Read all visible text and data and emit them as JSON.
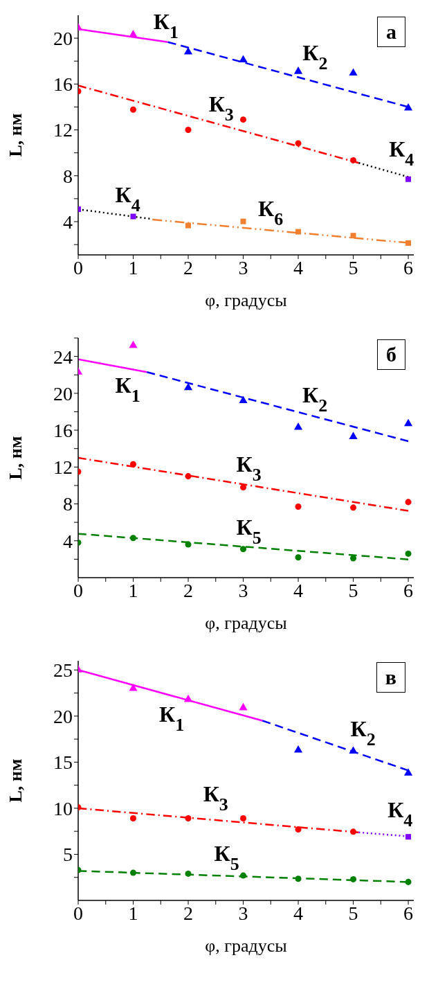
{
  "chart_data": [
    {
      "type": "scatter",
      "xlabel": "φ, градусы",
      "ylabel": "L, нм",
      "xlim": [
        0,
        6.1
      ],
      "xticks": [
        0,
        {
          "value": 0.5,
          "label": null
        },
        1,
        {
          "value": 1.5,
          "label": null
        },
        2,
        {
          "value": 2.5,
          "label": null
        },
        3,
        {
          "value": 3.5,
          "label": null
        },
        4,
        {
          "value": 4.5,
          "label": null
        },
        5,
        {
          "value": 5.5,
          "label": null
        },
        6
      ],
      "ylim": [
        1.1,
        22
      ],
      "yticks": [
        {
          "value": 2,
          "label": null
        },
        4,
        {
          "value": 6,
          "label": null
        },
        8,
        {
          "value": 10,
          "label": null
        },
        12,
        {
          "value": 14,
          "label": null
        },
        16,
        {
          "value": 18,
          "label": null
        },
        20
      ],
      "annotations": [
        "а"
      ],
      "series": [
        {
          "type": "scatter",
          "color": "#ff00ff",
          "marker": "triangle",
          "x": [
            0,
            1
          ],
          "values": [
            20.9,
            20.3
          ]
        },
        {
          "type": "scatter",
          "color": "#0000ff",
          "marker": "triangle",
          "x": [
            2,
            3,
            4,
            5,
            6
          ],
          "values": [
            18.8,
            18.1,
            17.1,
            16.95,
            13.9
          ]
        },
        {
          "type": "scatter",
          "color": "#ff0000",
          "marker": "circle",
          "x": [
            0,
            1,
            2,
            3,
            4,
            5
          ],
          "values": [
            15.37,
            13.77,
            12.0,
            12.9,
            10.83,
            9.35
          ]
        },
        {
          "type": "scatter",
          "color": "#8000ff",
          "marker": "square",
          "x": [
            0,
            1,
            6
          ],
          "values": [
            5.08,
            4.45,
            7.7
          ]
        },
        {
          "type": "scatter",
          "color": "#f08030",
          "marker": "square",
          "x": [
            2,
            3,
            4,
            5,
            6
          ],
          "values": [
            3.66,
            4.02,
            3.12,
            2.78,
            2.13
          ]
        },
        {
          "type": "line",
          "name": "К$_{1}$",
          "color": "#ff00ff",
          "line_style": "solid",
          "x": [
            0,
            1.63
          ],
          "values": [
            20.8,
            19.66
          ]
        },
        {
          "type": "line",
          "name": "К$_{2}$",
          "color": "#0000ff",
          "line_style": "dashed",
          "x": [
            1.63,
            6
          ],
          "values": [
            19.66,
            14.0
          ]
        },
        {
          "type": "line",
          "name": "К$_{3}$",
          "color": "#ff0000",
          "line_style": "dashdot",
          "x": [
            0,
            5.1
          ],
          "values": [
            15.87,
            9.12
          ]
        },
        {
          "type": "line",
          "name": "К$_{4}$",
          "color": "#000000",
          "line_style": "dotted",
          "x": [
            5.1,
            6
          ],
          "values": [
            9.12,
            7.9
          ]
        },
        {
          "type": "line",
          "name": "К$_{4}$",
          "color": "#000000",
          "line_style": "dotted",
          "x": [
            0,
            1.3
          ],
          "values": [
            5.08,
            4.25
          ]
        },
        {
          "type": "line",
          "name": "К$_{6}$",
          "color": "#f08030",
          "line_style": "dashdotdot",
          "x": [
            1.35,
            6
          ],
          "values": [
            4.18,
            2.15
          ]
        }
      ]
    },
    {
      "type": "scatter",
      "xlabel": "φ, градусы",
      "ylabel": "L, нм",
      "xlim": [
        0,
        6.1
      ],
      "xticks": [
        0,
        {
          "value": 0.5,
          "label": null
        },
        1,
        {
          "value": 1.5,
          "label": null
        },
        2,
        {
          "value": 2.5,
          "label": null
        },
        3,
        {
          "value": 3.5,
          "label": null
        },
        4,
        {
          "value": 4.5,
          "label": null
        },
        5,
        {
          "value": 5.5,
          "label": null
        },
        6
      ],
      "ylim": [
        0,
        26
      ],
      "yticks": [
        {
          "value": 2,
          "label": null
        },
        4,
        {
          "value": 6,
          "label": null
        },
        8,
        {
          "value": 10,
          "label": null
        },
        12,
        {
          "value": 14,
          "label": null
        },
        16,
        {
          "value": 18,
          "label": null
        },
        20,
        {
          "value": 22,
          "label": null
        },
        24,
        {
          "value": 26,
          "label": null
        }
      ],
      "annotations": [
        "б"
      ],
      "series": [
        {
          "type": "scatter",
          "color": "#ff00ff",
          "marker": "triangle",
          "x": [
            0,
            1
          ],
          "values": [
            22.3,
            25.2
          ]
        },
        {
          "type": "scatter",
          "color": "#0000ff",
          "marker": "triangle",
          "x": [
            2,
            3,
            4,
            5,
            6
          ],
          "values": [
            20.6,
            19.2,
            16.3,
            15.3,
            16.7
          ]
        },
        {
          "type": "scatter",
          "color": "#ff0000",
          "marker": "circle",
          "x": [
            0,
            1,
            2,
            3,
            4,
            5,
            6
          ],
          "values": [
            11.5,
            12.3,
            11.0,
            9.8,
            7.7,
            7.6,
            8.2
          ]
        },
        {
          "type": "scatter",
          "color": "#008000",
          "marker": "circle",
          "x": [
            0,
            1,
            2,
            3,
            4,
            5,
            6
          ],
          "values": [
            3.8,
            4.3,
            3.6,
            3.1,
            2.2,
            2.1,
            2.6
          ]
        },
        {
          "type": "line",
          "name": "К$_{1}$",
          "color": "#ff00ff",
          "line_style": "solid",
          "x": [
            0,
            1.25
          ],
          "values": [
            23.7,
            22.3
          ]
        },
        {
          "type": "line",
          "name": "К$_{2}$",
          "color": "#0000ff",
          "line_style": "dashed",
          "x": [
            1.25,
            6
          ],
          "values": [
            22.3,
            14.8
          ]
        },
        {
          "type": "line",
          "name": "К$_{3}$",
          "color": "#ff0000",
          "line_style": "dashdot",
          "x": [
            0,
            6
          ],
          "values": [
            13.0,
            7.25
          ]
        },
        {
          "type": "line",
          "name": "К$_{5}$",
          "color": "#008000",
          "line_style": "dashed",
          "x": [
            0,
            6
          ],
          "values": [
            4.76,
            1.98
          ]
        }
      ]
    },
    {
      "type": "scatter",
      "xlabel": "φ, градусы",
      "ylabel": "L, нм",
      "xlim": [
        0,
        6.1
      ],
      "xticks": [
        0,
        {
          "value": 0.5,
          "label": null
        },
        1,
        {
          "value": 1.5,
          "label": null
        },
        2,
        {
          "value": 2.5,
          "label": null
        },
        3,
        {
          "value": 3.5,
          "label": null
        },
        4,
        {
          "value": 4.5,
          "label": null
        },
        5,
        {
          "value": 5.5,
          "label": null
        },
        6
      ],
      "ylim": [
        0,
        26
      ],
      "yticks": [
        {
          "value": 2.5,
          "label": null
        },
        5,
        {
          "value": 7.5,
          "label": null
        },
        10,
        {
          "value": 12.5,
          "label": null
        },
        15,
        {
          "value": 17.5,
          "label": null
        },
        20,
        {
          "value": 22.5,
          "label": null
        },
        25
      ],
      "annotations": [
        "в"
      ],
      "series": [
        {
          "type": "scatter",
          "color": "#ff00ff",
          "marker": "triangle",
          "x": [
            0,
            1,
            2,
            3
          ],
          "values": [
            25.0,
            23.0,
            21.8,
            20.9
          ]
        },
        {
          "type": "scatter",
          "color": "#0000ff",
          "marker": "triangle",
          "x": [
            4,
            5,
            6
          ],
          "values": [
            16.3,
            16.2,
            13.8
          ]
        },
        {
          "type": "scatter",
          "color": "#ff0000",
          "marker": "circle",
          "x": [
            0,
            1,
            2,
            3,
            4,
            5
          ],
          "values": [
            10.1,
            8.9,
            8.9,
            8.9,
            7.7,
            7.45
          ]
        },
        {
          "type": "scatter",
          "color": "#8000ff",
          "marker": "square",
          "x": [
            6
          ],
          "values": [
            6.9
          ]
        },
        {
          "type": "scatter",
          "color": "#008000",
          "marker": "circle",
          "x": [
            0,
            1,
            2,
            3,
            4,
            5,
            6
          ],
          "values": [
            3.3,
            3.0,
            2.9,
            2.7,
            2.35,
            2.3,
            2.0
          ]
        },
        {
          "type": "line",
          "name": "К$_{1}$",
          "color": "#ff00ff",
          "line_style": "solid",
          "x": [
            0,
            3.35
          ],
          "values": [
            25.0,
            19.5
          ]
        },
        {
          "type": "line",
          "name": "К$_{2}$",
          "color": "#0000ff",
          "line_style": "dashed",
          "x": [
            3.35,
            6
          ],
          "values": [
            19.5,
            14.1
          ]
        },
        {
          "type": "line",
          "name": "К$_{3}$",
          "color": "#ff0000",
          "line_style": "dashdot",
          "x": [
            0,
            5.1
          ],
          "values": [
            10.0,
            7.38
          ]
        },
        {
          "type": "line",
          "name": "К$_{4}$",
          "color": "#8000ff",
          "line_style": "dotted",
          "x": [
            5.1,
            6
          ],
          "values": [
            7.38,
            6.95
          ]
        },
        {
          "type": "line",
          "name": "К$_{5}$",
          "color": "#008000",
          "line_style": "dashed",
          "x": [
            0,
            6
          ],
          "values": [
            3.2,
            2.0
          ]
        }
      ]
    }
  ]
}
